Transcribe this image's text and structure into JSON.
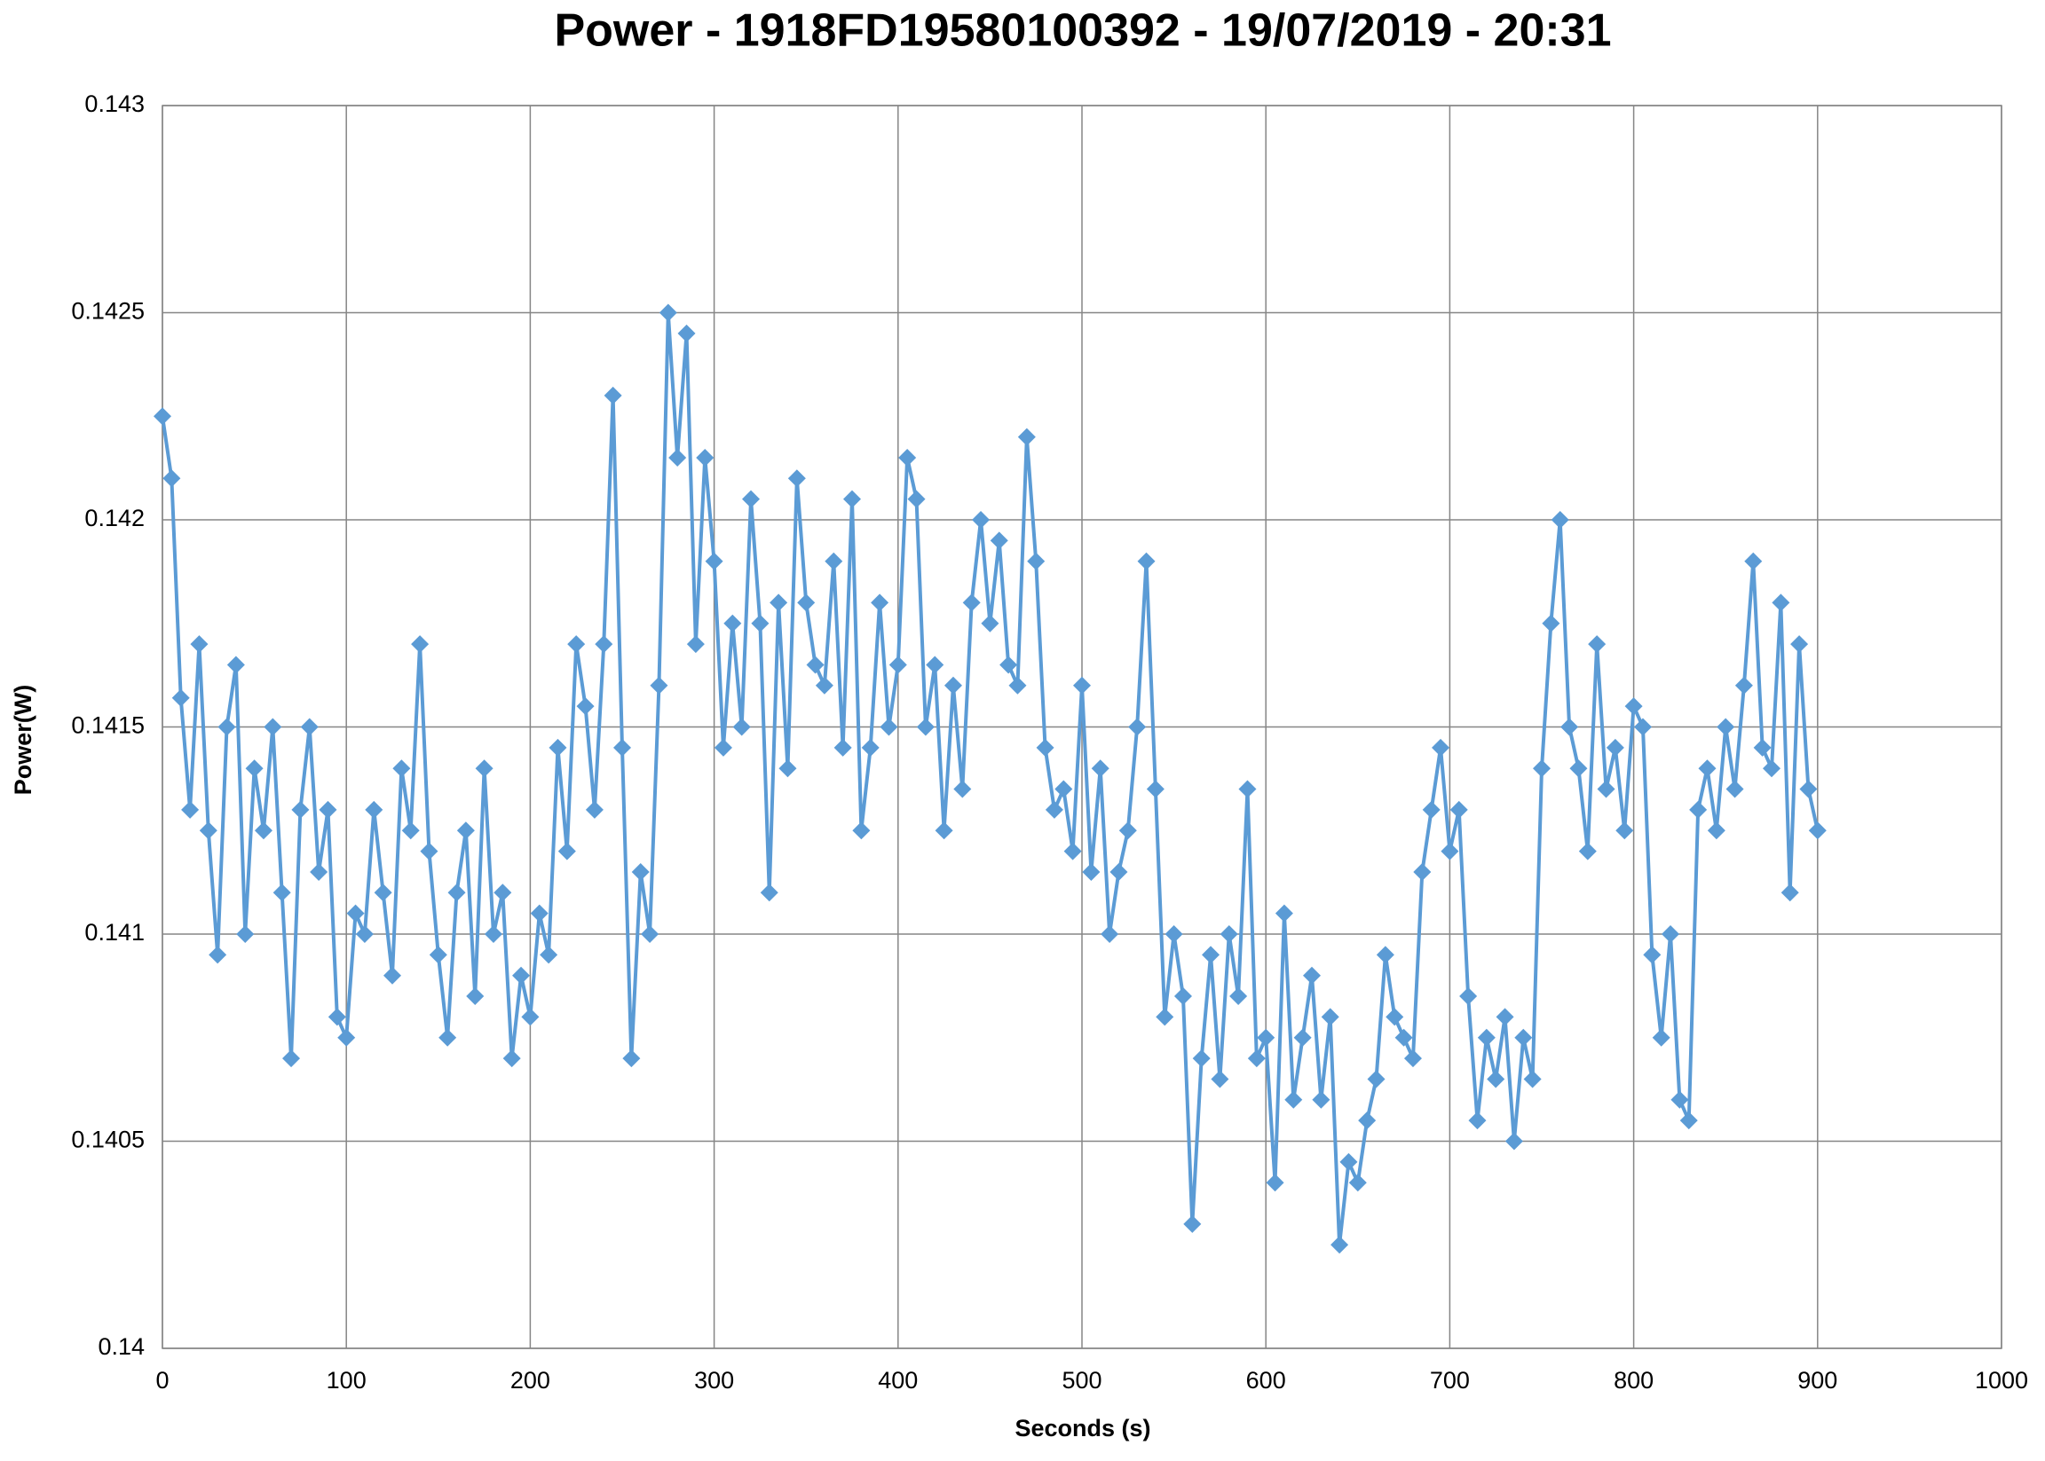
{
  "chart_data": {
    "type": "line",
    "title": "Power - 1918FD19580100392 - 19/07/2019 - 20:31",
    "x_label": "Seconds (s)",
    "y_label": "Power(W)",
    "xlim": [
      0,
      1000
    ],
    "xticks": [
      0,
      100,
      200,
      300,
      400,
      500,
      600,
      700,
      800,
      900,
      1000
    ],
    "ylim": [
      0.14,
      0.143
    ],
    "yticks": [
      0.14,
      0.1405,
      0.141,
      0.1415,
      0.142,
      0.1425,
      0.143
    ],
    "grid": true,
    "x": [
      0,
      5,
      10,
      15,
      20,
      25,
      30,
      35,
      40,
      45,
      50,
      55,
      60,
      65,
      70,
      75,
      80,
      85,
      90,
      95,
      100,
      105,
      110,
      115,
      120,
      125,
      130,
      135,
      140,
      145,
      150,
      155,
      160,
      165,
      170,
      175,
      180,
      185,
      190,
      195,
      200,
      205,
      210,
      215,
      220,
      225,
      230,
      235,
      240,
      245,
      250,
      255,
      260,
      265,
      270,
      275,
      280,
      285,
      290,
      295,
      300,
      305,
      310,
      315,
      320,
      325,
      330,
      335,
      340,
      345,
      350,
      355,
      360,
      365,
      370,
      375,
      380,
      385,
      390,
      395,
      400,
      405,
      410,
      415,
      420,
      425,
      430,
      435,
      440,
      445,
      450,
      455,
      460,
      465,
      470,
      475,
      480,
      485,
      490,
      495,
      500,
      505,
      510,
      515,
      520,
      525,
      530,
      535,
      540,
      545,
      550,
      555,
      560,
      565,
      570,
      575,
      580,
      585,
      590,
      595,
      600,
      605,
      610,
      615,
      620,
      625,
      630,
      635,
      640,
      645,
      650,
      655,
      660,
      665,
      670,
      675,
      680,
      685,
      690,
      695,
      700,
      705,
      710,
      715,
      720,
      725,
      730,
      735,
      740,
      745,
      750,
      755,
      760,
      765,
      770,
      775,
      780,
      785,
      790,
      795,
      800,
      805,
      810,
      815,
      820,
      825,
      830,
      835,
      840,
      845,
      850,
      855,
      860,
      865,
      870,
      875,
      880,
      885,
      890,
      895,
      900
    ],
    "series": [
      {
        "name": "Power",
        "color": "#5b9bd5",
        "values": [
          0.14225,
          0.1421,
          0.14157,
          0.1413,
          0.1417,
          0.14125,
          0.14095,
          0.1415,
          0.14165,
          0.141,
          0.1414,
          0.14125,
          0.1415,
          0.1411,
          0.1407,
          0.1413,
          0.1415,
          0.14115,
          0.1413,
          0.1408,
          0.14075,
          0.14105,
          0.141,
          0.1413,
          0.1411,
          0.1409,
          0.1414,
          0.14125,
          0.1417,
          0.1412,
          0.14095,
          0.14075,
          0.1411,
          0.14125,
          0.14085,
          0.1414,
          0.141,
          0.1411,
          0.1407,
          0.1409,
          0.1408,
          0.14105,
          0.14095,
          0.14145,
          0.1412,
          0.1417,
          0.14155,
          0.1413,
          0.1417,
          0.1423,
          0.14145,
          0.1407,
          0.14115,
          0.141,
          0.1416,
          0.1425,
          0.14215,
          0.14245,
          0.1417,
          0.14215,
          0.1419,
          0.14145,
          0.14175,
          0.1415,
          0.14205,
          0.14175,
          0.1411,
          0.1418,
          0.1414,
          0.1421,
          0.1418,
          0.14165,
          0.1416,
          0.1419,
          0.14145,
          0.14205,
          0.14125,
          0.14145,
          0.1418,
          0.1415,
          0.14165,
          0.14215,
          0.14205,
          0.1415,
          0.14165,
          0.14125,
          0.1416,
          0.14135,
          0.1418,
          0.142,
          0.14175,
          0.14195,
          0.14165,
          0.1416,
          0.1422,
          0.1419,
          0.14145,
          0.1413,
          0.14135,
          0.1412,
          0.1416,
          0.14115,
          0.1414,
          0.141,
          0.14115,
          0.14125,
          0.1415,
          0.1419,
          0.14135,
          0.1408,
          0.141,
          0.14085,
          0.1403,
          0.1407,
          0.14095,
          0.14065,
          0.141,
          0.14085,
          0.14135,
          0.1407,
          0.14075,
          0.1404,
          0.14105,
          0.1406,
          0.14075,
          0.1409,
          0.1406,
          0.1408,
          0.14025,
          0.14045,
          0.1404,
          0.14055,
          0.14065,
          0.14095,
          0.1408,
          0.14075,
          0.1407,
          0.14115,
          0.1413,
          0.14145,
          0.1412,
          0.1413,
          0.14085,
          0.14055,
          0.14075,
          0.14065,
          0.1408,
          0.1405,
          0.14075,
          0.14065,
          0.1414,
          0.14175,
          0.142,
          0.1415,
          0.1414,
          0.1412,
          0.1417,
          0.14135,
          0.14145,
          0.14125,
          0.14155,
          0.1415,
          0.14095,
          0.14075,
          0.141,
          0.1406,
          0.14055,
          0.1413,
          0.1414,
          0.14125,
          0.1415,
          0.14135,
          0.1416,
          0.1419,
          0.14145,
          0.1414,
          0.1418,
          0.1411,
          0.1417,
          0.14135,
          0.14125
        ]
      }
    ]
  }
}
